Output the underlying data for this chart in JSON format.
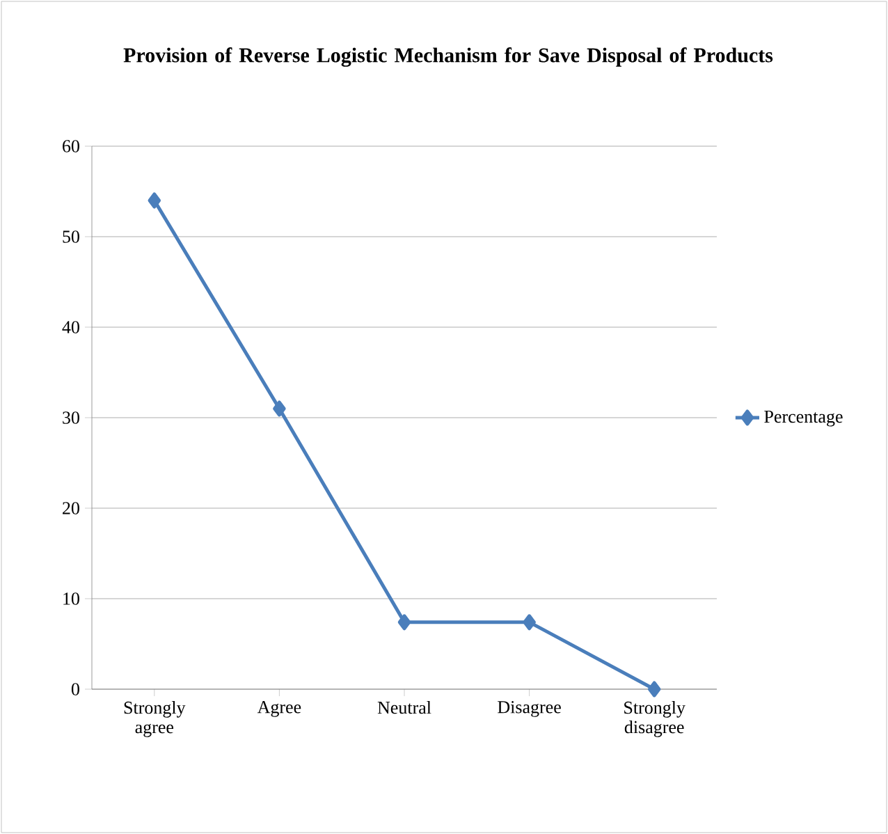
{
  "chart_data": {
    "type": "line",
    "title": "Provision of Reverse Logistic Mechanism for Save Disposal of Products",
    "categories": [
      "Strongly agree",
      "Agree",
      "Neutral",
      "Disagree",
      "Strongly disagree"
    ],
    "series": [
      {
        "name": "Percentage",
        "color": "#4a7ebb",
        "values": [
          54,
          31,
          7.4,
          7.4,
          0
        ]
      }
    ],
    "ylim": [
      0,
      60
    ],
    "yticks": [
      0,
      10,
      20,
      30,
      40,
      50,
      60
    ],
    "grid": "y",
    "legend": "right",
    "marker": "diamond"
  }
}
